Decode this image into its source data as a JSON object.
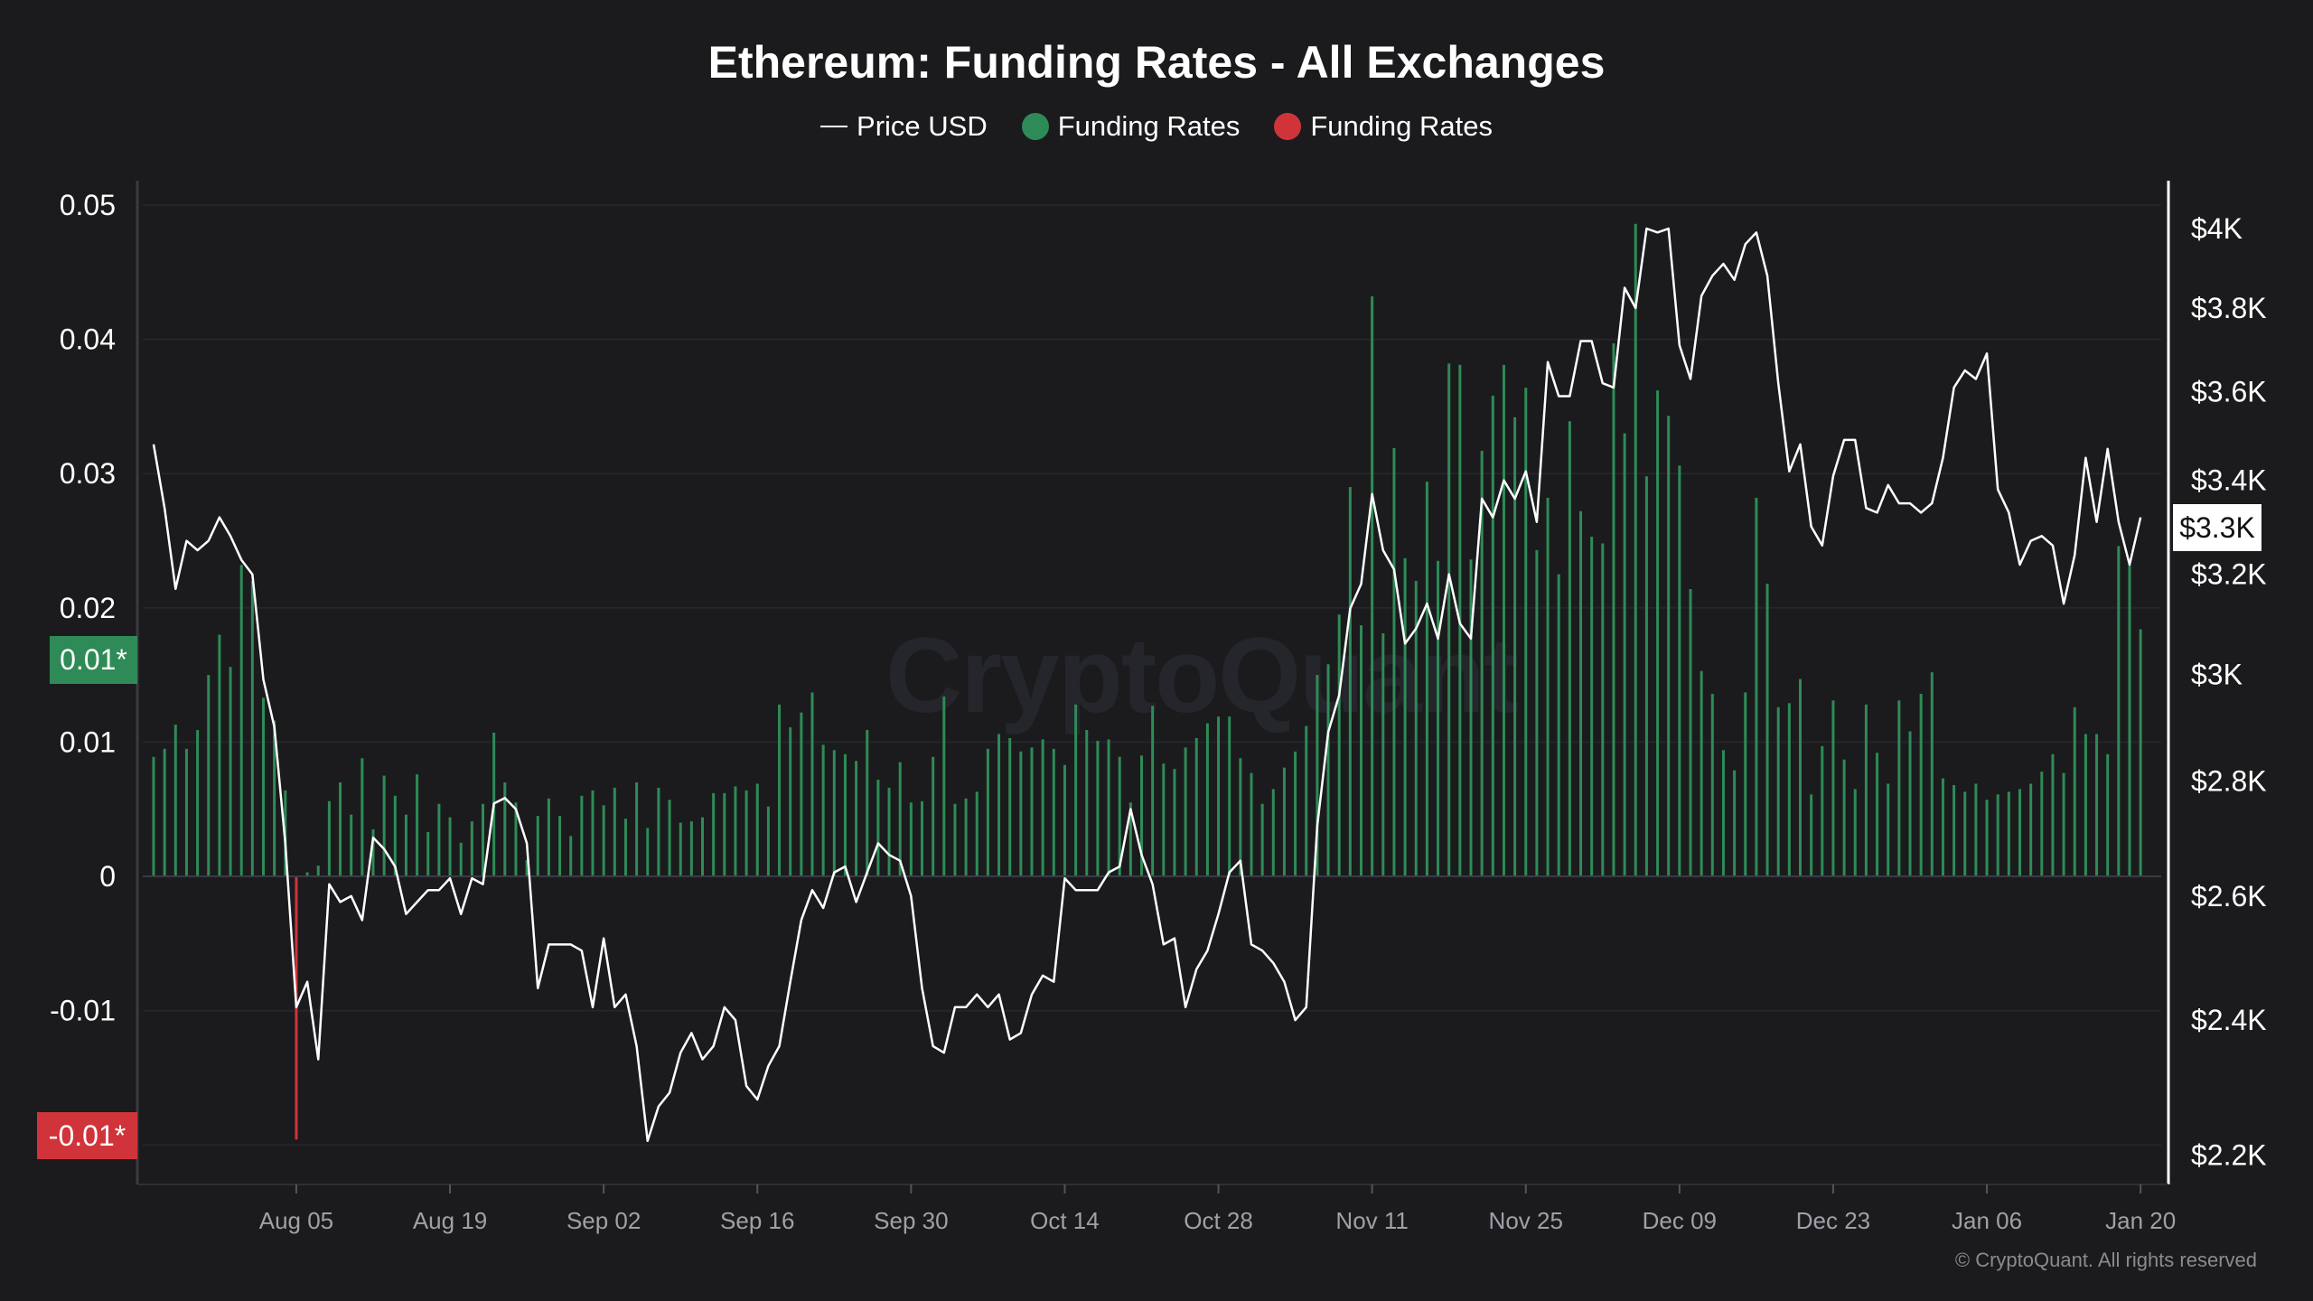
{
  "chart_data": {
    "type": "bar+line",
    "title": "Ethereum: Funding Rates - All Exchanges",
    "legend": {
      "placement": "top-center",
      "items": [
        {
          "label": "Price USD",
          "marker": "line",
          "color": "#ffffff"
        },
        {
          "label": "Funding Rates",
          "marker": "dot",
          "color": "#2e8b57"
        },
        {
          "label": "Funding Rates",
          "marker": "dot",
          "color": "#d0343a"
        }
      ]
    },
    "left_axis": {
      "ticks": [
        "0.05",
        "0.04",
        "0.03",
        "0.02",
        "0.01",
        "0",
        "-0.01"
      ],
      "tick_values": [
        0.05,
        0.04,
        0.03,
        0.02,
        0.01,
        0,
        -0.01
      ],
      "range": [
        -0.023,
        0.052
      ]
    },
    "right_axis": {
      "scale": "log",
      "ticks": [
        "$4K",
        "$3.8K",
        "$3.6K",
        "$3.4K",
        "$3.2K",
        "$3K",
        "$2.8K",
        "$2.6K",
        "$2.4K",
        "$2.2K"
      ],
      "tick_values": [
        4000,
        3800,
        3600,
        3400,
        3200,
        3000,
        2800,
        2600,
        2400,
        2200
      ]
    },
    "x_ticks": [
      "Aug 05",
      "Aug 19",
      "Sep 02",
      "Sep 16",
      "Sep 30",
      "Oct 14",
      "Oct 28",
      "Nov 11",
      "Nov 25",
      "Dec 09",
      "Dec 23",
      "Jan 06",
      "Jan 20"
    ],
    "grid": true,
    "colors": {
      "positive": "#2e8b57",
      "negative": "#d0343a",
      "price": "#ffffff",
      "background": "#1b1b1d"
    },
    "badges": {
      "funding_positive": "0.01*",
      "funding_negative": "-0.01*",
      "price": "$3.3K"
    },
    "x": [
      "Jul 23",
      "Jul 24",
      "Jul 25",
      "Jul 26",
      "Jul 27",
      "Jul 28",
      "Jul 29",
      "Jul 30",
      "Jul 31",
      "Aug 01",
      "Aug 02",
      "Aug 03",
      "Aug 04",
      "Aug 05",
      "Aug 06",
      "Aug 07",
      "Aug 08",
      "Aug 09",
      "Aug 10",
      "Aug 11",
      "Aug 12",
      "Aug 13",
      "Aug 14",
      "Aug 15",
      "Aug 16",
      "Aug 17",
      "Aug 18",
      "Aug 19",
      "Aug 20",
      "Aug 21",
      "Aug 22",
      "Aug 23",
      "Aug 24",
      "Aug 25",
      "Aug 26",
      "Aug 27",
      "Aug 28",
      "Aug 29",
      "Aug 30",
      "Aug 31",
      "Sep 01",
      "Sep 02",
      "Sep 03",
      "Sep 04",
      "Sep 05",
      "Sep 06",
      "Sep 07",
      "Sep 08",
      "Sep 09",
      "Sep 10",
      "Sep 11",
      "Sep 12",
      "Sep 13",
      "Sep 14",
      "Sep 15",
      "Sep 16",
      "Sep 17",
      "Sep 18",
      "Sep 19",
      "Sep 20",
      "Sep 21",
      "Sep 22",
      "Sep 23",
      "Sep 24",
      "Sep 25",
      "Sep 26",
      "Sep 27",
      "Sep 28",
      "Sep 29",
      "Sep 30",
      "Oct 01",
      "Oct 02",
      "Oct 03",
      "Oct 04",
      "Oct 05",
      "Oct 06",
      "Oct 07",
      "Oct 08",
      "Oct 09",
      "Oct 10",
      "Oct 11",
      "Oct 12",
      "Oct 13",
      "Oct 14",
      "Oct 15",
      "Oct 16",
      "Oct 17",
      "Oct 18",
      "Oct 19",
      "Oct 20",
      "Oct 21",
      "Oct 22",
      "Oct 23",
      "Oct 24",
      "Oct 25",
      "Oct 26",
      "Oct 27",
      "Oct 28",
      "Oct 29",
      "Oct 30",
      "Oct 31",
      "Nov 01",
      "Nov 02",
      "Nov 03",
      "Nov 04",
      "Nov 05",
      "Nov 06",
      "Nov 07",
      "Nov 08",
      "Nov 09",
      "Nov 10",
      "Nov 11",
      "Nov 12",
      "Nov 13",
      "Nov 14",
      "Nov 15",
      "Nov 16",
      "Nov 17",
      "Nov 18",
      "Nov 19",
      "Nov 20",
      "Nov 21",
      "Nov 22",
      "Nov 23",
      "Nov 24",
      "Nov 25",
      "Nov 26",
      "Nov 27",
      "Nov 28",
      "Nov 29",
      "Nov 30",
      "Dec 01",
      "Dec 02",
      "Dec 03",
      "Dec 04",
      "Dec 05",
      "Dec 06",
      "Dec 07",
      "Dec 08",
      "Dec 09",
      "Dec 10",
      "Dec 11",
      "Dec 12",
      "Dec 13",
      "Dec 14",
      "Dec 15",
      "Dec 16",
      "Dec 17",
      "Dec 18",
      "Dec 19",
      "Dec 20",
      "Dec 21",
      "Dec 22",
      "Dec 23",
      "Dec 24",
      "Dec 25",
      "Dec 26",
      "Dec 27",
      "Dec 28",
      "Dec 29",
      "Dec 30",
      "Dec 31",
      "Jan 01",
      "Jan 02",
      "Jan 03",
      "Jan 04",
      "Jan 05",
      "Jan 06",
      "Jan 07",
      "Jan 08",
      "Jan 09",
      "Jan 10",
      "Jan 11",
      "Jan 12",
      "Jan 13",
      "Jan 14",
      "Jan 15",
      "Jan 16",
      "Jan 17",
      "Jan 18",
      "Jan 19",
      "Jan 20"
    ],
    "series": [
      {
        "name": "Funding Rates",
        "axis": "left",
        "type": "bar",
        "values": [
          0.0089,
          0.0095,
          0.0113,
          0.0095,
          0.0109,
          0.015,
          0.018,
          0.0156,
          0.0232,
          0.022,
          0.0133,
          0.0116,
          0.0064,
          -0.0196,
          0.0003,
          0.0008,
          0.0056,
          0.007,
          0.0046,
          0.0088,
          0.0035,
          0.0075,
          0.006,
          0.0046,
          0.0076,
          0.0033,
          0.0054,
          0.0044,
          0.0025,
          0.0041,
          0.0054,
          0.0107,
          0.007,
          0.0055,
          0.0012,
          0.0045,
          0.0058,
          0.0045,
          0.003,
          0.006,
          0.0064,
          0.0053,
          0.0066,
          0.0043,
          0.007,
          0.0036,
          0.0066,
          0.0057,
          0.004,
          0.0041,
          0.0044,
          0.0062,
          0.0062,
          0.0067,
          0.0064,
          0.0069,
          0.0052,
          0.0128,
          0.0111,
          0.0122,
          0.0137,
          0.0098,
          0.0094,
          0.0091,
          0.0086,
          0.0109,
          0.0072,
          0.0066,
          0.0085,
          0.0055,
          0.0056,
          0.0089,
          0.0134,
          0.0054,
          0.0058,
          0.0063,
          0.0095,
          0.0106,
          0.0103,
          0.0093,
          0.0096,
          0.0102,
          0.0095,
          0.0083,
          0.0128,
          0.0109,
          0.0101,
          0.0102,
          0.0089,
          0.0055,
          0.009,
          0.0127,
          0.0084,
          0.008,
          0.0096,
          0.0103,
          0.0114,
          0.0119,
          0.0119,
          0.0088,
          0.0077,
          0.0054,
          0.0065,
          0.0081,
          0.0093,
          0.0112,
          0.015,
          0.0158,
          0.0195,
          0.029,
          0.0187,
          0.0432,
          0.0181,
          0.0319,
          0.0237,
          0.022,
          0.0294,
          0.0235,
          0.0382,
          0.0381,
          0.0236,
          0.0317,
          0.0358,
          0.0381,
          0.0342,
          0.0364,
          0.0243,
          0.0282,
          0.0225,
          0.0339,
          0.0272,
          0.0253,
          0.0248,
          0.0397,
          0.033,
          0.0486,
          0.0298,
          0.0362,
          0.0343,
          0.0306,
          0.0214,
          0.0153,
          0.0136,
          0.0094,
          0.0079,
          0.0137,
          0.0282,
          0.0218,
          0.0126,
          0.0129,
          0.0147,
          0.0061,
          0.0097,
          0.0131,
          0.0087,
          0.0065,
          0.0128,
          0.0092,
          0.0069,
          0.0131,
          0.0108,
          0.0136,
          0.0152,
          0.0073,
          0.0068,
          0.0063,
          0.0069,
          0.0057,
          0.0061,
          0.0063,
          0.0065,
          0.0069,
          0.0078,
          0.0091,
          0.0077,
          0.0126,
          0.0106,
          0.0106,
          0.0091,
          0.0246,
          0.0232,
          0.0184
        ]
      },
      {
        "name": "Price USD",
        "axis": "right",
        "type": "line",
        "values": [
          3480,
          3340,
          3170,
          3270,
          3250,
          3270,
          3320,
          3280,
          3230,
          3200,
          2990,
          2900,
          2690,
          2420,
          2460,
          2340,
          2620,
          2590,
          2600,
          2560,
          2700,
          2680,
          2650,
          2570,
          2590,
          2610,
          2610,
          2630,
          2570,
          2630,
          2620,
          2760,
          2770,
          2750,
          2690,
          2450,
          2520,
          2520,
          2520,
          2510,
          2420,
          2530,
          2420,
          2440,
          2360,
          2220,
          2270,
          2290,
          2350,
          2380,
          2340,
          2360,
          2420,
          2400,
          2300,
          2280,
          2330,
          2360,
          2460,
          2560,
          2610,
          2580,
          2640,
          2650,
          2590,
          2640,
          2690,
          2670,
          2660,
          2600,
          2450,
          2360,
          2350,
          2420,
          2420,
          2440,
          2420,
          2440,
          2370,
          2380,
          2440,
          2470,
          2460,
          2630,
          2610,
          2610,
          2610,
          2640,
          2650,
          2750,
          2670,
          2620,
          2520,
          2530,
          2420,
          2480,
          2510,
          2570,
          2640,
          2660,
          2520,
          2510,
          2490,
          2460,
          2400,
          2420,
          2720,
          2890,
          2960,
          3130,
          3180,
          3370,
          3250,
          3210,
          3060,
          3090,
          3140,
          3070,
          3200,
          3100,
          3070,
          3360,
          3320,
          3400,
          3360,
          3420,
          3310,
          3670,
          3590,
          3590,
          3720,
          3720,
          3620,
          3610,
          3850,
          3800,
          4000,
          3990,
          4000,
          3710,
          3630,
          3830,
          3880,
          3910,
          3870,
          3960,
          3990,
          3880,
          3620,
          3420,
          3480,
          3300,
          3260,
          3410,
          3490,
          3490,
          3340,
          3330,
          3390,
          3350,
          3350,
          3330,
          3350,
          3450,
          3610,
          3650,
          3630,
          3690,
          3380,
          3330,
          3220,
          3270,
          3280,
          3260,
          3140,
          3240,
          3450,
          3310,
          3470,
          3310,
          3220,
          3320
        ]
      }
    ]
  },
  "watermark": "CryptoQuant",
  "copyright": "© CryptoQuant. All rights reserved"
}
